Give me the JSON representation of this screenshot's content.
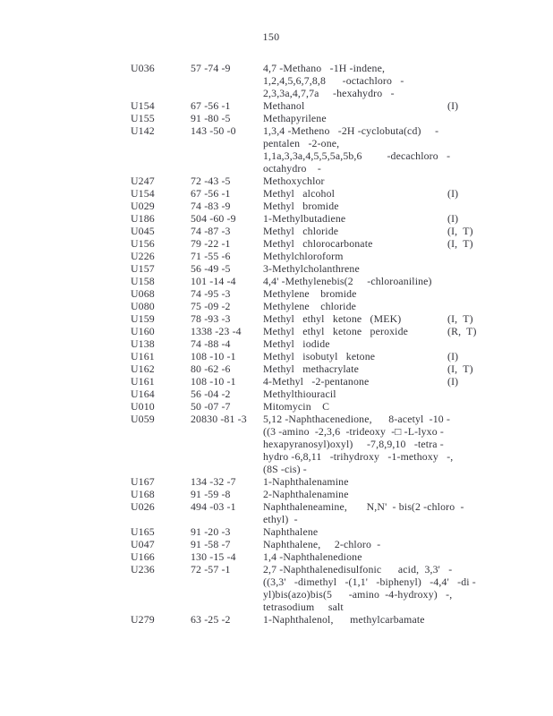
{
  "page": {
    "number": "150"
  },
  "table": {
    "entries": [
      {
        "code": "U036",
        "cas": "57 -74 -9",
        "note": "",
        "name_lines": [
          "4,7 -Methano   -1H -indene,",
          "1,2,4,5,6,7,8,8      -octachloro   -",
          "2,3,3a,4,7,7a     -hexahydro   -"
        ]
      },
      {
        "code": "U154",
        "cas": "67 -56 -1",
        "note": "(I)",
        "name_lines": [
          "Methanol"
        ]
      },
      {
        "code": "U155",
        "cas": "91 -80 -5",
        "note": "",
        "name_lines": [
          "Methapyrilene"
        ]
      },
      {
        "code": "U142",
        "cas": "143 -50 -0",
        "note": "",
        "name_lines": [
          "1,3,4 -Metheno   -2H -cyclobuta(cd)     -",
          "pentalen   -2-one,",
          "1,1a,3,3a,4,5,5,5a,5b,6         -decachloro   -",
          "octahydro    -"
        ]
      },
      {
        "code": "U247",
        "cas": "72 -43 -5",
        "note": "",
        "name_lines": [
          "Methoxychlor"
        ]
      },
      {
        "code": "U154",
        "cas": "67 -56 -1",
        "note": "(I)",
        "name_lines": [
          "Methyl   alcohol"
        ]
      },
      {
        "code": "U029",
        "cas": "74 -83 -9",
        "note": "",
        "name_lines": [
          "Methyl   bromide"
        ]
      },
      {
        "code": "U186",
        "cas": "504 -60 -9",
        "note": "(I)",
        "name_lines": [
          "1-Methylbutadiene"
        ]
      },
      {
        "code": "U045",
        "cas": "74 -87 -3",
        "note": "(I,  T)",
        "name_lines": [
          "Methyl   chloride"
        ]
      },
      {
        "code": "U156",
        "cas": "79 -22 -1",
        "note": "(I,  T)",
        "name_lines": [
          "Methyl   chlorocarbonate"
        ]
      },
      {
        "code": "U226",
        "cas": "71 -55 -6",
        "note": "",
        "name_lines": [
          "Methylchloroform"
        ]
      },
      {
        "code": "U157",
        "cas": "56 -49 -5",
        "note": "",
        "name_lines": [
          "3-Methylcholanthrene"
        ]
      },
      {
        "code": "U158",
        "cas": "101 -14 -4",
        "note": "",
        "name_lines": [
          "4,4' -Methylenebis(2     -chloroaniline)"
        ]
      },
      {
        "code": "U068",
        "cas": "74 -95 -3",
        "note": "",
        "name_lines": [
          "Methylene    bromide"
        ]
      },
      {
        "code": "U080",
        "cas": "75 -09 -2",
        "note": "",
        "name_lines": [
          "Methylene    chloride"
        ]
      },
      {
        "code": "U159",
        "cas": "78 -93 -3",
        "note": "(I,  T)",
        "name_lines": [
          "Methyl   ethyl   ketone   (MEK)"
        ]
      },
      {
        "code": "U160",
        "cas": "1338 -23 -4",
        "note": "(R,  T)",
        "name_lines": [
          "Methyl   ethyl   ketone   peroxide"
        ]
      },
      {
        "code": "U138",
        "cas": "74 -88 -4",
        "note": "",
        "name_lines": [
          "Methyl   iodide"
        ]
      },
      {
        "code": "U161",
        "cas": "108 -10 -1",
        "note": "(I)",
        "name_lines": [
          "Methyl   isobutyl   ketone"
        ]
      },
      {
        "code": "U162",
        "cas": "80 -62 -6",
        "note": "(I,  T)",
        "name_lines": [
          "Methyl   methacrylate"
        ]
      },
      {
        "code": "U161",
        "cas": "108 -10 -1",
        "note": "(I)",
        "name_lines": [
          "4-Methyl   -2-pentanone"
        ]
      },
      {
        "code": "U164",
        "cas": "56 -04 -2",
        "note": "",
        "name_lines": [
          "Methylthiouracil"
        ]
      },
      {
        "code": "U010",
        "cas": "50 -07 -7",
        "note": "",
        "name_lines": [
          "Mitomycin    C"
        ]
      },
      {
        "code": "U059",
        "cas": "20830 -81 -3",
        "note": "",
        "name_lines": [
          "5,12 -Naphthacenedione,      8-acetyl  -10 -",
          "((3 -amino  -2,3,6  -trideoxy  -□ -L-lyxo -",
          "hexapyranosyl)oxyl)     -7,8,9,10   -tetra -",
          "hydro -6,8,11   -trihydroxy   -1-methoxy   -,",
          "(8S -cis) -"
        ]
      },
      {
        "code": "U167",
        "cas": "134 -32 -7",
        "note": "",
        "name_lines": [
          "1-Naphthalenamine"
        ]
      },
      {
        "code": "U168",
        "cas": "91 -59 -8",
        "note": "",
        "name_lines": [
          "2-Naphthalenamine"
        ]
      },
      {
        "code": "U026",
        "cas": "494 -03 -1",
        "note": "",
        "name_lines": [
          "Naphthaleneamine,       N,N'  - bis(2 -chloro  -",
          "ethyl)  -"
        ]
      },
      {
        "code": "U165",
        "cas": "91 -20 -3",
        "note": "",
        "name_lines": [
          "Naphthalene"
        ]
      },
      {
        "code": "U047",
        "cas": "91 -58 -7",
        "note": "",
        "name_lines": [
          "Naphthalene,     2-chloro  -"
        ]
      },
      {
        "code": "U166",
        "cas": "130 -15 -4",
        "note": "",
        "name_lines": [
          "1,4 -Naphthalenedione"
        ]
      },
      {
        "code": "U236",
        "cas": "72 -57 -1",
        "note": "",
        "name_lines": [
          "2,7 -Naphthalenedisulfonic      acid,  3,3'   -",
          "((3,3'   -dimethyl   -(1,1'   -biphenyl)   -4,4'   -di -",
          "yl)bis(azo)bis(5      -amino  -4-hydroxy)   -,",
          "tetrasodium     salt"
        ]
      },
      {
        "code": "U279",
        "cas": "63 -25 -2",
        "note": "",
        "name_lines": [
          "1-Naphthalenol,      methylcarbamate"
        ]
      }
    ]
  }
}
